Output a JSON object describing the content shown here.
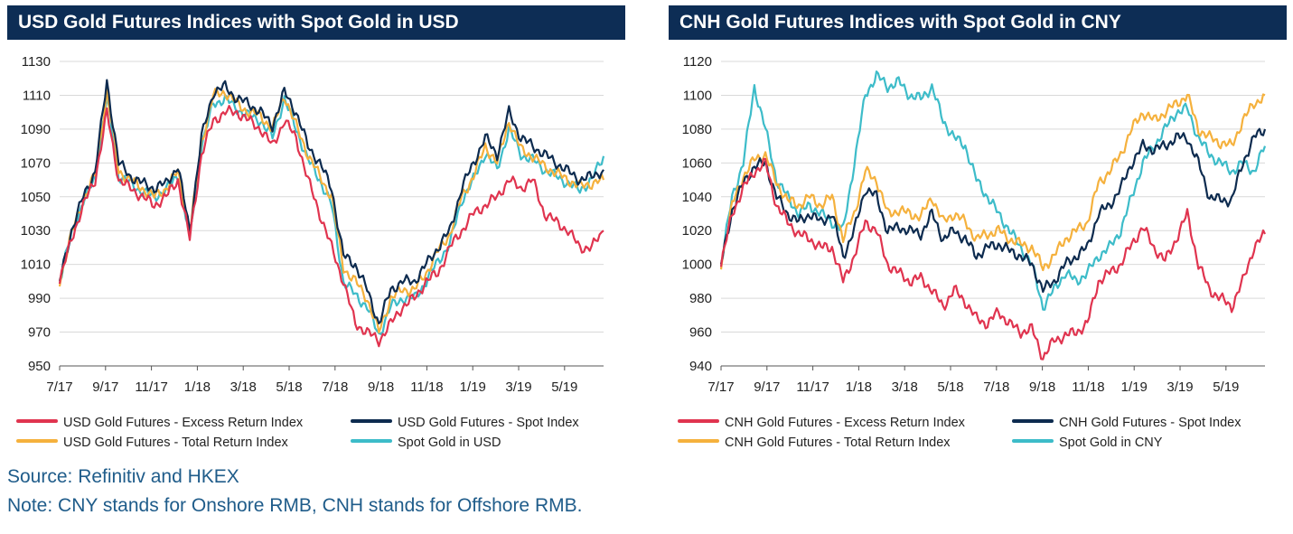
{
  "colors": {
    "excess": "#e0344f",
    "spot_index": "#0d2b4f",
    "total": "#f5b13d",
    "spot_gold": "#3dbcc9",
    "title_bg": "#0d2d55",
    "footer_text": "#1f5c8a"
  },
  "footer": {
    "source": "Source: Refinitiv and HKEX",
    "note": "Note: CNY stands for Onshore RMB, CNH stands for Offshore RMB."
  },
  "chart_data": [
    {
      "type": "line",
      "title": "USD Gold Futures Indices with Spot Gold in USD",
      "xlabel": "",
      "ylabel": "",
      "x_ticks": [
        "7/17",
        "9/17",
        "11/17",
        "1/18",
        "3/18",
        "5/18",
        "7/18",
        "9/18",
        "11/18",
        "1/19",
        "3/19",
        "5/19"
      ],
      "y_ticks": [
        950,
        970,
        990,
        1010,
        1030,
        1050,
        1070,
        1090,
        1110,
        1130
      ],
      "ylim": [
        950,
        1130
      ],
      "grid": true,
      "series": [
        {
          "name": "USD Gold Futures - Excess Return Index",
          "key": "excess",
          "values": [
            1000,
            1025,
            1045,
            1060,
            1100,
            1060,
            1055,
            1050,
            1045,
            1050,
            1060,
            1025,
            1075,
            1095,
            1100,
            1100,
            1095,
            1090,
            1080,
            1095,
            1085,
            1060,
            1040,
            1020,
            1000,
            975,
            970,
            965,
            975,
            985,
            990,
            1000,
            1005,
            1020,
            1030,
            1040,
            1045,
            1050,
            1060,
            1055,
            1060,
            1040,
            1035,
            1030,
            1020,
            1020,
            1030
          ]
        },
        {
          "name": "USD Gold Futures - Spot Index",
          "key": "spot_index",
          "values": [
            1000,
            1030,
            1050,
            1065,
            1118,
            1070,
            1062,
            1058,
            1055,
            1058,
            1068,
            1030,
            1085,
            1112,
            1115,
            1108,
            1105,
            1100,
            1092,
            1112,
            1100,
            1080,
            1070,
            1055,
            1015,
            1010,
            995,
            975,
            995,
            1000,
            1000,
            1010,
            1020,
            1030,
            1055,
            1070,
            1085,
            1075,
            1100,
            1085,
            1080,
            1075,
            1070,
            1065,
            1060,
            1062,
            1066
          ]
        },
        {
          "name": "USD Gold Futures - Total Return Index",
          "key": "total",
          "values": [
            1000,
            1028,
            1048,
            1063,
            1112,
            1065,
            1060,
            1055,
            1050,
            1055,
            1065,
            1028,
            1082,
            1110,
            1112,
            1105,
            1100,
            1098,
            1090,
            1110,
            1092,
            1075,
            1062,
            1050,
            1008,
            1000,
            990,
            970,
            990,
            995,
            995,
            1005,
            1018,
            1028,
            1050,
            1062,
            1080,
            1070,
            1095,
            1078,
            1074,
            1068,
            1064,
            1060,
            1056,
            1058,
            1060
          ]
        },
        {
          "name": "Spot Gold in USD",
          "key": "spot_gold",
          "values": [
            1000,
            1028,
            1047,
            1062,
            1108,
            1062,
            1058,
            1053,
            1050,
            1054,
            1063,
            1026,
            1080,
            1105,
            1108,
            1102,
            1098,
            1095,
            1085,
            1108,
            1090,
            1072,
            1060,
            1045,
            1000,
            992,
            985,
            968,
            985,
            990,
            990,
            1000,
            1012,
            1022,
            1048,
            1060,
            1076,
            1066,
            1090,
            1075,
            1072,
            1066,
            1062,
            1058,
            1054,
            1060,
            1074
          ]
        }
      ]
    },
    {
      "type": "line",
      "title": "CNH Gold Futures Indices with Spot Gold in CNY",
      "xlabel": "",
      "ylabel": "",
      "x_ticks": [
        "7/17",
        "9/17",
        "11/17",
        "1/18",
        "3/18",
        "5/18",
        "7/18",
        "9/18",
        "11/18",
        "1/19",
        "3/19",
        "5/19"
      ],
      "y_ticks": [
        940,
        960,
        980,
        1000,
        1020,
        1040,
        1060,
        1080,
        1100,
        1120
      ],
      "ylim": [
        940,
        1120
      ],
      "grid": true,
      "series": [
        {
          "name": "CNH Gold Futures - Excess Return Index",
          "key": "excess",
          "values": [
            1000,
            1030,
            1045,
            1055,
            1060,
            1035,
            1025,
            1018,
            1015,
            1010,
            1010,
            990,
            1005,
            1025,
            1020,
            1000,
            995,
            990,
            992,
            985,
            975,
            985,
            978,
            968,
            965,
            972,
            965,
            960,
            962,
            945,
            955,
            958,
            960,
            965,
            990,
            995,
            1000,
            1012,
            1022,
            1010,
            1002,
            1015,
            1030,
            1000,
            985,
            980,
            975,
            990,
            1010,
            1018
          ]
        },
        {
          "name": "CNH Gold Futures - Spot Index",
          "key": "spot_index",
          "values": [
            1000,
            1032,
            1048,
            1058,
            1060,
            1040,
            1030,
            1025,
            1030,
            1025,
            1030,
            1005,
            1020,
            1045,
            1040,
            1020,
            1022,
            1020,
            1018,
            1030,
            1015,
            1020,
            1015,
            1005,
            1010,
            1012,
            1008,
            1005,
            1000,
            985,
            990,
            1000,
            1005,
            1010,
            1030,
            1035,
            1045,
            1060,
            1070,
            1068,
            1070,
            1075,
            1075,
            1060,
            1040,
            1038,
            1038,
            1060,
            1075,
            1080
          ]
        },
        {
          "name": "CNH Gold Futures - Total Return Index",
          "key": "total",
          "values": [
            1000,
            1035,
            1052,
            1062,
            1065,
            1048,
            1038,
            1035,
            1040,
            1035,
            1040,
            1015,
            1030,
            1055,
            1050,
            1030,
            1032,
            1030,
            1028,
            1040,
            1025,
            1030,
            1025,
            1015,
            1018,
            1020,
            1015,
            1012,
            1010,
            998,
            1005,
            1015,
            1020,
            1025,
            1048,
            1055,
            1065,
            1080,
            1090,
            1085,
            1090,
            1095,
            1100,
            1080,
            1075,
            1072,
            1070,
            1085,
            1095,
            1100
          ]
        },
        {
          "name": "Spot Gold in CNY",
          "key": "spot_gold",
          "values": [
            1000,
            1040,
            1060,
            1105,
            1080,
            1050,
            1040,
            1030,
            1035,
            1030,
            1025,
            1020,
            1060,
            1100,
            1112,
            1105,
            1108,
            1100,
            1098,
            1105,
            1085,
            1075,
            1070,
            1050,
            1040,
            1030,
            1020,
            1010,
            1000,
            975,
            985,
            995,
            990,
            995,
            1005,
            1010,
            1020,
            1040,
            1060,
            1070,
            1080,
            1090,
            1092,
            1075,
            1065,
            1060,
            1055,
            1060,
            1055,
            1070
          ]
        }
      ]
    }
  ],
  "legend_order": [
    "excess",
    "spot_index",
    "total",
    "spot_gold"
  ]
}
